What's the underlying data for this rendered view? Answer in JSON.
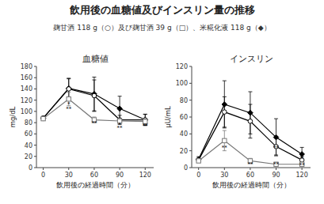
{
  "title": "飲用後の血糖値及びインスリン量の推移",
  "subtitle": "麹甘酒 118 g（○）及び麹甘酒 39 g（□）、米糀化液 118 g（◆）",
  "chart_data": [
    {
      "type": "line",
      "title": "血糖値",
      "x": [
        0,
        30,
        60,
        90,
        120
      ],
      "xlabel": "飲用後の経過時間（分）",
      "ylabel": "mg/dL",
      "xlim": [
        -8,
        130
      ],
      "xticks": [
        0,
        30,
        60,
        90,
        120
      ],
      "ylim": [
        0,
        180
      ],
      "yticks": [
        0,
        20,
        40,
        60,
        80,
        100,
        120,
        140,
        160,
        180
      ],
      "grid": false,
      "series": [
        {
          "color": "#000000",
          "marker": "diamond",
          "values": [
            88,
            141,
            131,
            105,
            85
          ],
          "errors": [
            3,
            18,
            30,
            22,
            10
          ]
        },
        {
          "color": "#000000",
          "marker": "open-circle",
          "values": [
            88,
            140,
            128,
            85,
            85
          ],
          "errors": [
            3,
            18,
            28,
            8,
            10
          ]
        },
        {
          "color": "#777777",
          "marker": "open-square",
          "values": [
            87,
            122,
            85,
            83,
            82
          ],
          "errors": [
            3,
            12,
            5,
            5,
            5
          ]
        }
      ],
      "annotations": [
        {
          "x": 30,
          "y": 110,
          "text": "*"
        },
        {
          "x": 30,
          "y": 101,
          "text": "**"
        },
        {
          "x": 60,
          "y": 76,
          "text": "**"
        },
        {
          "x": 90,
          "y": 73,
          "text": "*"
        },
        {
          "x": 90,
          "y": 67,
          "text": "**"
        },
        {
          "x": 120,
          "y": 72,
          "text": "**"
        }
      ]
    },
    {
      "type": "line",
      "title": "インスリン",
      "x": [
        0,
        30,
        60,
        90,
        120
      ],
      "xlabel": "飲用後の経過時間（分）",
      "ylabel": "μU/mL",
      "xlim": [
        -8,
        130
      ],
      "xticks": [
        0,
        30,
        60,
        90,
        120
      ],
      "ylim": [
        0,
        120
      ],
      "yticks": [
        0,
        20,
        40,
        60,
        80,
        100,
        120
      ],
      "grid": false,
      "series": [
        {
          "color": "#000000",
          "marker": "diamond",
          "values": [
            10,
            75,
            65,
            36,
            16
          ],
          "errors": [
            3,
            28,
            25,
            22,
            8
          ]
        },
        {
          "color": "#000000",
          "marker": "open-circle",
          "values": [
            9,
            66,
            55,
            25,
            9
          ],
          "errors": [
            2,
            18,
            20,
            10,
            4
          ]
        },
        {
          "color": "#777777",
          "marker": "open-square",
          "values": [
            8,
            32,
            8,
            4,
            4
          ],
          "errors": [
            2,
            12,
            3,
            2,
            2
          ]
        }
      ],
      "annotations": [
        {
          "x": 30,
          "y": 22,
          "text": "**"
        },
        {
          "x": 60,
          "y": 2,
          "text": "**"
        },
        {
          "x": 90,
          "y": 2,
          "text": "**"
        },
        {
          "x": 90,
          "y": 22,
          "text": "**"
        },
        {
          "x": 120,
          "y": 8,
          "text": "*"
        },
        {
          "x": 120,
          "y": 1,
          "text": "**"
        }
      ]
    }
  ]
}
